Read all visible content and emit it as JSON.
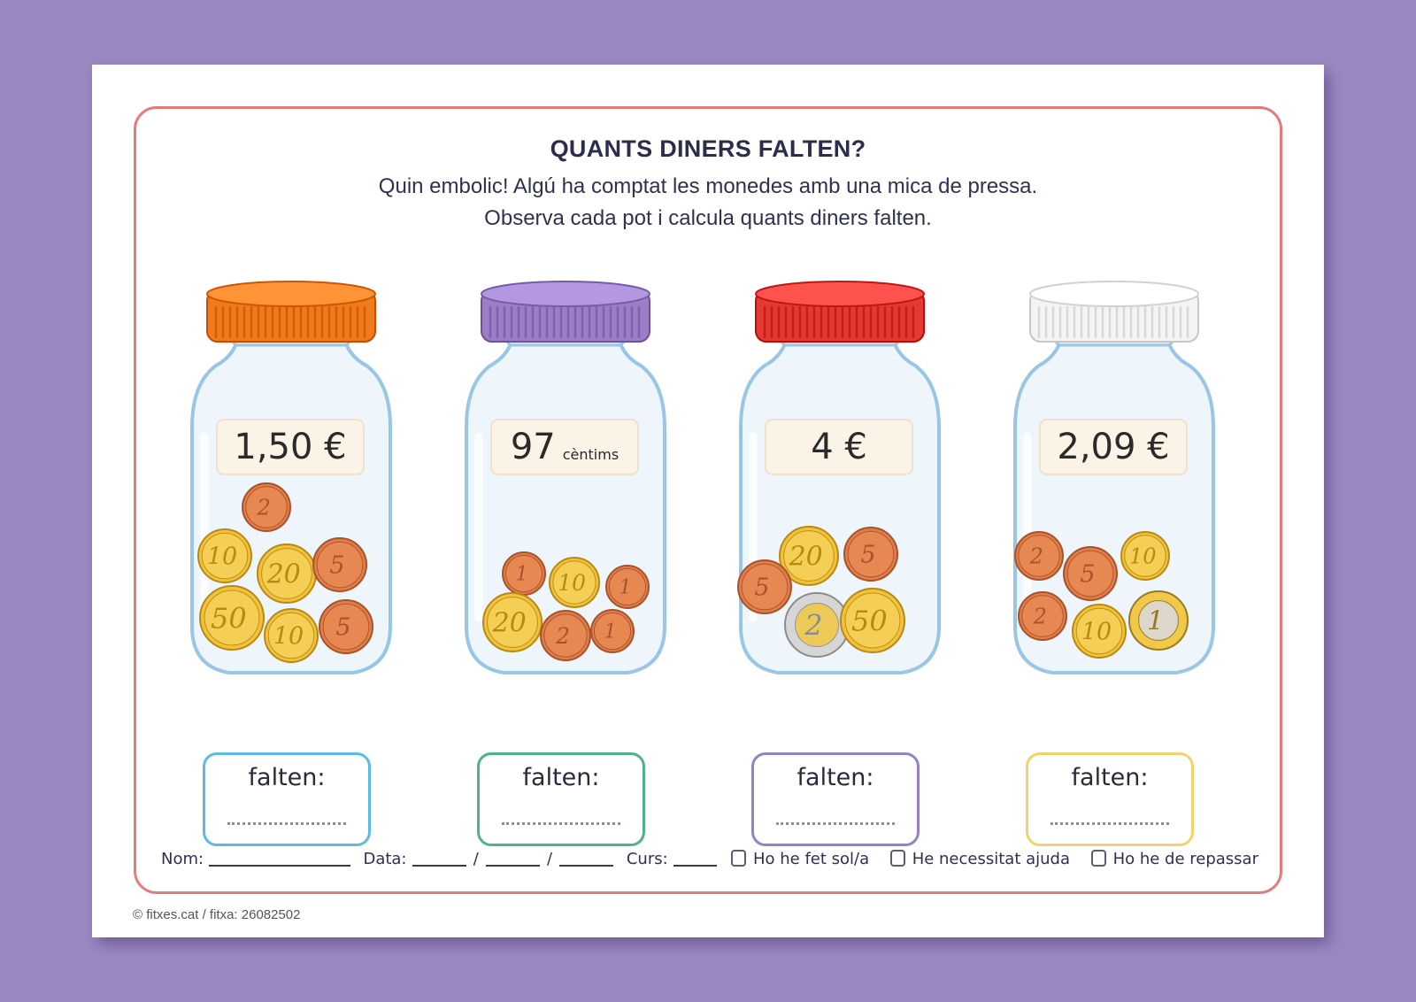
{
  "worksheet": {
    "title": "QUANTS DINERS FALTEN?",
    "instructions_line1": "Quin embolic! Algú ha comptat les monedes amb una mica de pressa.",
    "instructions_line2": "Observa cada pot i calcula quants diners falten."
  },
  "jars": [
    {
      "lid_color": "#f07a1e",
      "target": "1,50 €",
      "target_unit": "",
      "answer_label": "falten:",
      "answer_box_color": "#5bbbe3",
      "coins": [
        {
          "value": "2",
          "type": "copper"
        },
        {
          "value": "10",
          "type": "gold"
        },
        {
          "value": "20",
          "type": "gold"
        },
        {
          "value": "5",
          "type": "copper"
        },
        {
          "value": "50",
          "type": "gold"
        },
        {
          "value": "10",
          "type": "gold"
        },
        {
          "value": "5",
          "type": "copper"
        }
      ]
    },
    {
      "lid_color": "#9a7fc8",
      "target": "97",
      "target_unit": "cèntims",
      "answer_label": "falten:",
      "answer_box_color": "#4fb38a",
      "coins": [
        {
          "value": "1",
          "type": "copper"
        },
        {
          "value": "10",
          "type": "gold"
        },
        {
          "value": "1",
          "type": "copper"
        },
        {
          "value": "20",
          "type": "gold"
        },
        {
          "value": "2",
          "type": "copper"
        },
        {
          "value": "1",
          "type": "copper"
        }
      ]
    },
    {
      "lid_color": "#e53935",
      "target": "4 €",
      "target_unit": "",
      "answer_label": "falten:",
      "answer_box_color": "#9483c4",
      "coins": [
        {
          "value": "20",
          "type": "gold"
        },
        {
          "value": "5",
          "type": "copper"
        },
        {
          "value": "5",
          "type": "copper"
        },
        {
          "value": "2",
          "type": "bimetal_2"
        },
        {
          "value": "50",
          "type": "gold"
        }
      ]
    },
    {
      "lid_color": "#f4f4f4",
      "target": "2,09 €",
      "target_unit": "",
      "answer_label": "falten:",
      "answer_box_color": "#f2d36b",
      "coins": [
        {
          "value": "2",
          "type": "copper"
        },
        {
          "value": "5",
          "type": "copper"
        },
        {
          "value": "10",
          "type": "gold"
        },
        {
          "value": "2",
          "type": "copper"
        },
        {
          "value": "10",
          "type": "gold"
        },
        {
          "value": "1",
          "type": "bimetal_1"
        }
      ]
    }
  ],
  "footer": {
    "name_label": "Nom:",
    "date_label": "Data:",
    "date_sep": "/",
    "course_label": "Curs:",
    "check1": "Ho he fet sol/a",
    "check2": "He necessitat ajuda",
    "check3": "Ho he de repassar"
  },
  "copyright": "© fitxes.cat / fitxa: 26082502"
}
